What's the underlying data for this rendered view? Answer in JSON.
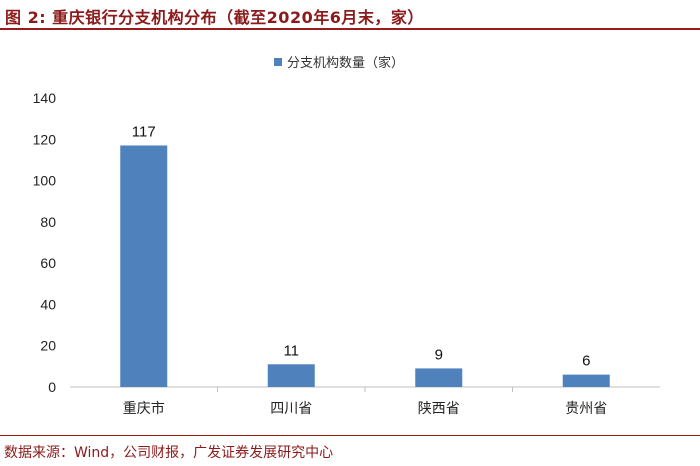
{
  "figure": {
    "title": "图 2:  重庆银行分支机构分布（截至2020年6月末，家）",
    "source": "数据来源：Wind，公司财报，广发证券发展研究中心"
  },
  "colors": {
    "bar": "#4f81bd",
    "accent": "#9a1b1b",
    "axis": "#bfbfbf"
  },
  "chart_data": {
    "type": "bar",
    "categories": [
      "重庆市",
      "四川省",
      "陕西省",
      "贵州省"
    ],
    "series": [
      {
        "name": "分支机构数量（家）",
        "values": [
          117,
          11,
          9,
          6
        ]
      }
    ],
    "data_labels": [
      "117",
      "11",
      "9",
      "6"
    ],
    "yticks": [
      "0",
      "20",
      "40",
      "60",
      "80",
      "100",
      "120",
      "140"
    ],
    "ylim": [
      0,
      140
    ],
    "grid": false,
    "legend": "top-center"
  }
}
